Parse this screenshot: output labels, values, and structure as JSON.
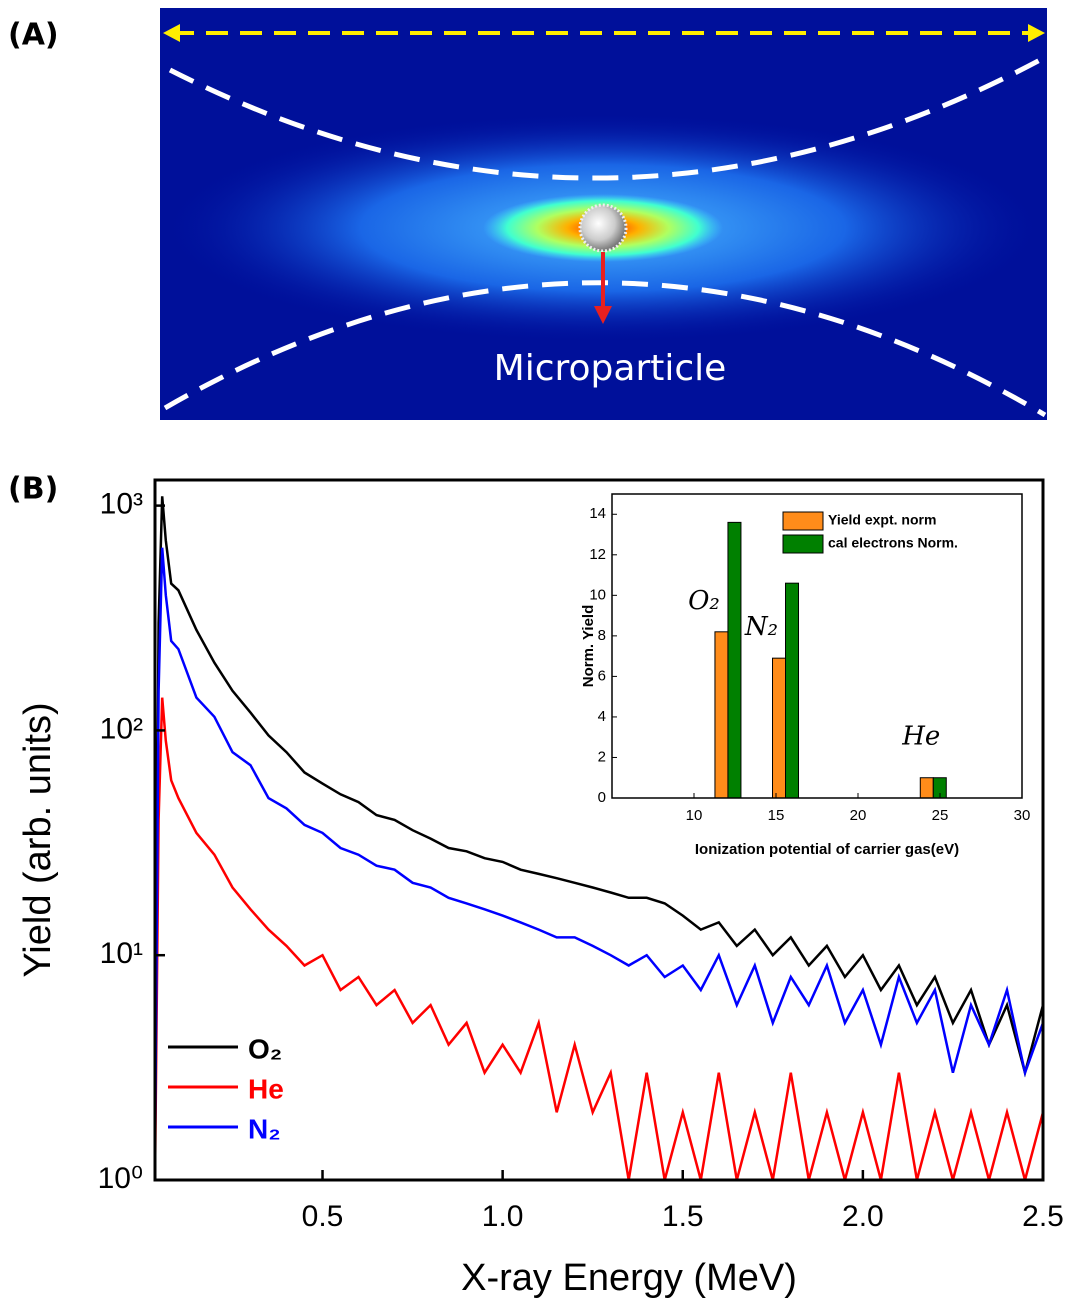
{
  "panel_a": {
    "label": "(A)",
    "annotation": "Microparticle"
  },
  "chart_data": [
    {
      "type": "line",
      "panel_label": "(B)",
      "x_label": "X-ray Energy (MeV)",
      "y_label": "Yield (arb. units)",
      "x": [
        0.035,
        0.045,
        0.055,
        0.065,
        0.08,
        0.1,
        0.15,
        0.2,
        0.25,
        0.3,
        0.35,
        0.4,
        0.45,
        0.5,
        0.55,
        0.6,
        0.65,
        0.7,
        0.75,
        0.8,
        0.85,
        0.9,
        0.95,
        1.0,
        1.05,
        1.1,
        1.15,
        1.2,
        1.25,
        1.3,
        1.35,
        1.4,
        1.45,
        1.5,
        1.55,
        1.6,
        1.65,
        1.7,
        1.75,
        1.8,
        1.85,
        1.9,
        1.95,
        2.0,
        2.05,
        2.1,
        2.15,
        2.2,
        2.25,
        2.3,
        2.35,
        2.4,
        2.45,
        2.5
      ],
      "series": [
        {
          "name": "O₂",
          "color": "#000000",
          "values": [
            1.5,
            300,
            1100,
            700,
            450,
            420,
            280,
            200,
            150,
            120,
            95,
            80,
            65,
            58,
            52,
            48,
            42,
            40,
            36,
            33,
            30,
            29,
            27,
            26,
            24,
            23,
            22,
            21,
            20,
            19,
            18,
            18,
            17,
            15,
            13,
            14,
            11,
            13,
            10,
            12,
            9,
            11,
            8,
            10,
            7,
            9,
            6,
            8,
            5,
            7,
            4,
            6,
            3,
            6
          ]
        },
        {
          "name": "He",
          "color": "#ff0000",
          "values": [
            1,
            40,
            140,
            90,
            60,
            50,
            35,
            28,
            20,
            16,
            13,
            11,
            9,
            10,
            7,
            8,
            6,
            7,
            5,
            6,
            4,
            5,
            3,
            4,
            3,
            5,
            2,
            4,
            2,
            3,
            1,
            3,
            1,
            2,
            1,
            3,
            1,
            2,
            1,
            3,
            1,
            2,
            1,
            2,
            1,
            3,
            1,
            2,
            1,
            2,
            1,
            2,
            1,
            2
          ]
        },
        {
          "name": "N₂",
          "color": "#0000ff",
          "values": [
            1.2,
            150,
            650,
            400,
            250,
            230,
            140,
            115,
            80,
            70,
            50,
            45,
            38,
            35,
            30,
            28,
            25,
            24,
            21,
            20,
            18,
            17,
            16,
            15,
            14,
            13,
            12,
            12,
            11,
            10,
            9,
            10,
            8,
            9,
            7,
            10,
            6,
            9,
            5,
            8,
            6,
            9,
            5,
            7,
            4,
            8,
            5,
            7,
            3,
            6,
            4,
            7,
            3,
            5
          ]
        }
      ],
      "xlim": [
        0.035,
        2.5
      ],
      "xticks": [
        0.5,
        {
          "value": 1,
          "label": "1.0"
        },
        1.5,
        {
          "value": 2,
          "label": "2.0"
        },
        2.5
      ],
      "ylim": [
        1,
        1300
      ],
      "log_y": true,
      "yticks": [
        {
          "value": 1,
          "label": "10⁰"
        },
        {
          "value": 10,
          "label": "10¹"
        },
        {
          "value": 100,
          "label": "10²"
        },
        {
          "value": 1000,
          "label": "10³"
        }
      ],
      "legend": "lower left"
    },
    {
      "type": "bar",
      "x_label": "Ionization potential of carrier gas(eV)",
      "y_label": "Norm. Yield",
      "x": [
        12.07,
        15.58,
        24.59
      ],
      "annotations": [
        "O₂",
        "N₂",
        "He"
      ],
      "series": [
        {
          "name": "Yield expt. norm",
          "color": "#ff8c1a",
          "values": [
            8.2,
            6.9,
            1.0
          ]
        },
        {
          "name": "cal electrons Norm.",
          "color": "#008000",
          "values": [
            13.6,
            10.6,
            1.0
          ]
        }
      ],
      "xlim": [
        5,
        30
      ],
      "xticks": [
        10,
        15,
        20,
        25,
        30
      ],
      "ylim": [
        0,
        15
      ],
      "yticks": [
        0,
        2,
        4,
        6,
        8,
        10,
        12,
        14
      ],
      "legend": "upper right"
    }
  ]
}
